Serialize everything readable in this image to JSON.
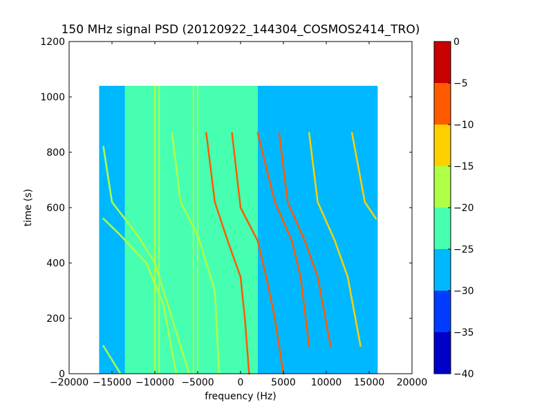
{
  "chart_data": {
    "type": "heatmap",
    "title": "150 MHz signal PSD (20120922_144304_COSMOS2414_TRO)",
    "xlabel": "frequency (Hz)",
    "ylabel": "time (s)",
    "xlim": [
      -20000,
      20000
    ],
    "ylim": [
      0,
      1200
    ],
    "xticks": [
      -20000,
      -15000,
      -10000,
      -5000,
      0,
      5000,
      10000,
      15000,
      20000
    ],
    "xtick_labels": [
      "−20000",
      "−15000",
      "−10000",
      "−5000",
      "0",
      "5000",
      "10000",
      "15000",
      "20000"
    ],
    "yticks": [
      0,
      200,
      400,
      600,
      800,
      1000,
      1200
    ],
    "ytick_labels": [
      "0",
      "200",
      "400",
      "600",
      "800",
      "1000",
      "1200"
    ],
    "data_extent": {
      "freq": [
        -16500,
        16000
      ],
      "time": [
        0,
        1040
      ]
    },
    "background_regions": [
      {
        "freq": [
          -16500,
          -4000
        ],
        "time": [
          0,
          1040
        ],
        "level": -26
      },
      {
        "freq": [
          -13500,
          2000
        ],
        "time": [
          0,
          1040
        ],
        "level": -22
      },
      {
        "freq": [
          2000,
          16000
        ],
        "time": [
          0,
          1040
        ],
        "level": -28
      }
    ],
    "vertical_lines": [
      {
        "freq": -10000,
        "level": -17
      },
      {
        "freq": -9500,
        "level": -17
      },
      {
        "freq": -5500,
        "level": -17
      },
      {
        "freq": -5000,
        "level": -18
      }
    ],
    "doppler_tracks": [
      {
        "points": [
          [
            -4000,
            870
          ],
          [
            -3000,
            620
          ],
          [
            -1500,
            480
          ],
          [
            0,
            350
          ],
          [
            500,
            200
          ],
          [
            1000,
            0
          ]
        ],
        "level": -5
      },
      {
        "points": [
          [
            -1000,
            870
          ],
          [
            0,
            600
          ],
          [
            2000,
            480
          ],
          [
            3000,
            350
          ],
          [
            4000,
            200
          ],
          [
            5000,
            0
          ]
        ],
        "level": -5
      },
      {
        "points": [
          [
            2000,
            870
          ],
          [
            4000,
            620
          ],
          [
            6000,
            480
          ],
          [
            7000,
            350
          ],
          [
            8000,
            100
          ]
        ],
        "level": -7
      },
      {
        "points": [
          [
            4500,
            870
          ],
          [
            5500,
            620
          ],
          [
            7500,
            480
          ],
          [
            9000,
            350
          ],
          [
            10500,
            100
          ]
        ],
        "level": -9
      },
      {
        "points": [
          [
            8000,
            870
          ],
          [
            9000,
            620
          ],
          [
            11000,
            480
          ],
          [
            12500,
            350
          ],
          [
            14000,
            100
          ]
        ],
        "level": -14
      },
      {
        "points": [
          [
            13000,
            870
          ],
          [
            14500,
            620
          ],
          [
            15800,
            560
          ]
        ],
        "level": -12
      },
      {
        "points": [
          [
            -16000,
            820
          ],
          [
            -15000,
            620
          ],
          [
            -12000,
            500
          ],
          [
            -10000,
            400
          ],
          [
            -8000,
            200
          ],
          [
            -6000,
            0
          ]
        ],
        "level": -15
      },
      {
        "points": [
          [
            -8000,
            870
          ],
          [
            -7000,
            620
          ],
          [
            -5000,
            500
          ],
          [
            -3000,
            300
          ],
          [
            -2500,
            0
          ]
        ],
        "level": -15
      },
      {
        "points": [
          [
            -16000,
            560
          ],
          [
            -14000,
            500
          ],
          [
            -11000,
            400
          ],
          [
            -9000,
            250
          ],
          [
            -7500,
            0
          ]
        ],
        "level": -18
      },
      {
        "points": [
          [
            -16000,
            100
          ],
          [
            -14000,
            0
          ]
        ],
        "level": -18
      }
    ],
    "colorbar": {
      "ticks": [
        0,
        -5,
        -10,
        -15,
        -20,
        -25,
        -30,
        -35,
        -40
      ],
      "tick_labels": [
        "0",
        "−5",
        "−10",
        "−15",
        "−20",
        "−25",
        "−30",
        "−35",
        "−40"
      ],
      "range": [
        -40,
        0
      ],
      "bins": [
        {
          "range": [
            -40,
            -35
          ],
          "color": "#0000c8"
        },
        {
          "range": [
            -35,
            -30
          ],
          "color": "#003cff"
        },
        {
          "range": [
            -30,
            -25
          ],
          "color": "#00b8ff"
        },
        {
          "range": [
            -25,
            -20
          ],
          "color": "#47ffb0"
        },
        {
          "range": [
            -20,
            -15
          ],
          "color": "#b0ff47"
        },
        {
          "range": [
            -15,
            -10
          ],
          "color": "#ffd000"
        },
        {
          "range": [
            -10,
            -5
          ],
          "color": "#ff5a00"
        },
        {
          "range": [
            -5,
            0
          ],
          "color": "#c80000"
        }
      ]
    }
  }
}
